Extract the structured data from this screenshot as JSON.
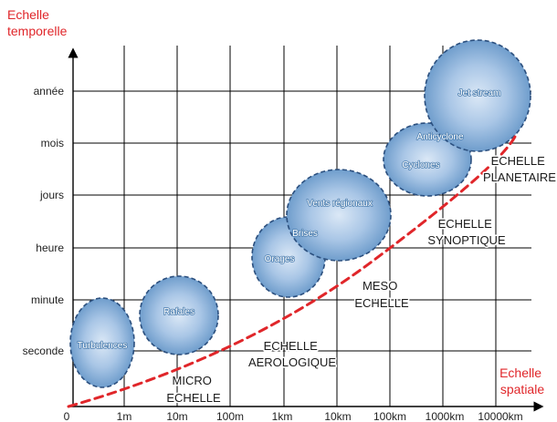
{
  "title_y": [
    "Echelle",
    "temporelle"
  ],
  "title_x": [
    "Echelle",
    "spatiale"
  ],
  "y_ticks": [
    "seconde",
    "minute",
    "heure",
    "jours",
    "mois",
    "année"
  ],
  "x_ticks": [
    "0",
    "1m",
    "10m",
    "100m",
    "1km",
    "10km",
    "100km",
    "1000km",
    "10000km"
  ],
  "phenomena": [
    "Turbulences",
    "Rafales",
    "Orages",
    "Brises",
    "Vents régionaux",
    "Cyclones",
    "Anticyclone",
    "Jet stream"
  ],
  "zones": {
    "micro": [
      "MICRO",
      "ECHELLE"
    ],
    "aero": [
      "ECHELLE",
      "AEROLOGIQUE"
    ],
    "meso": [
      "MESO",
      "ECHELLE"
    ],
    "synoptique": [
      "ECHELLE",
      "SYNOPTIQUE"
    ],
    "planetaire": [
      "ECHELLE",
      "PLANETAIRE"
    ]
  },
  "colors": {
    "axis_title": "#e0262a",
    "boundary": "#e0262a",
    "bubble_edge": "#2b4f7e",
    "bubble_fill": "#a9c6e6",
    "grid": "#000000"
  }
}
